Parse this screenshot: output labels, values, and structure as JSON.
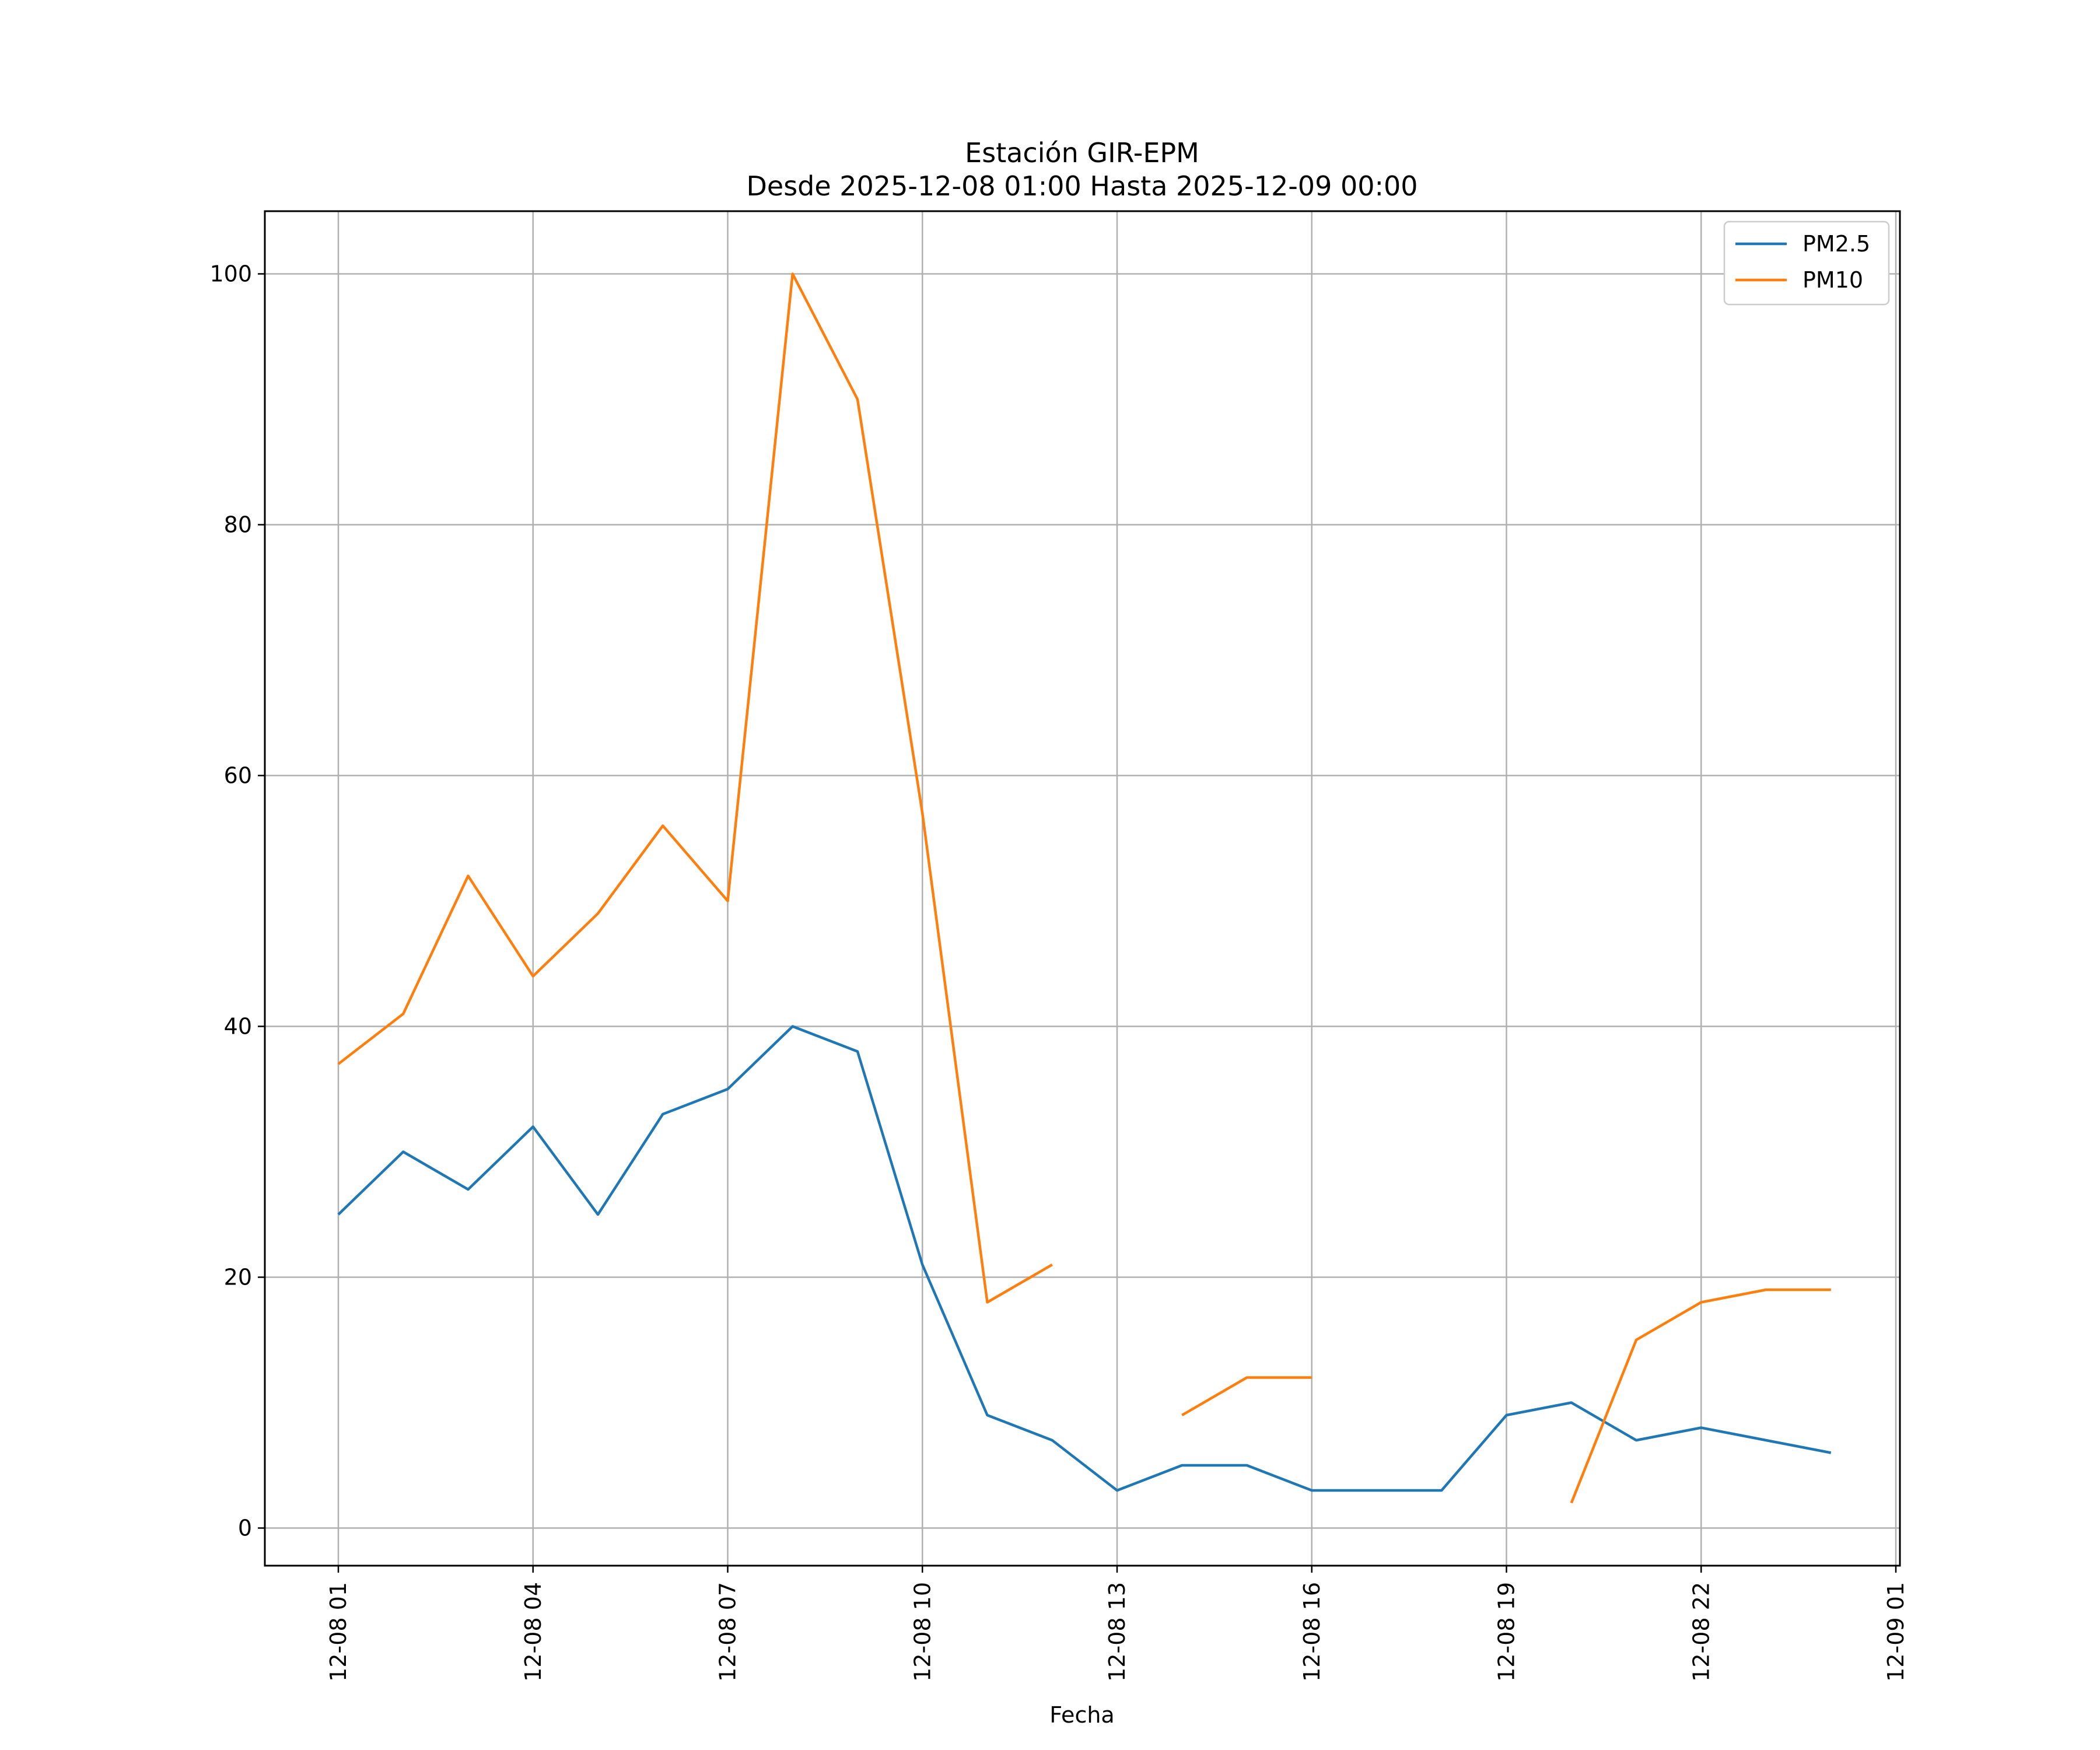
{
  "chart_data": {
    "type": "line",
    "title": "Estación GIR-EPM",
    "subtitle": "Desde 2025-12-08 01:00 Hasta 2025-12-09 00:00",
    "xlabel": "Fecha",
    "ylabel": "",
    "x": [
      "12-08 01",
      "12-08 02",
      "12-08 03",
      "12-08 04",
      "12-08 05",
      "12-08 06",
      "12-08 07",
      "12-08 08",
      "12-08 09",
      "12-08 10",
      "12-08 11",
      "12-08 12",
      "12-08 13",
      "12-08 14",
      "12-08 15",
      "12-08 16",
      "12-08 17",
      "12-08 18",
      "12-08 19",
      "12-08 20",
      "12-08 21",
      "12-08 22",
      "12-08 23",
      "12-09 00"
    ],
    "x_ticks": [
      "12-08 01",
      "12-08 04",
      "12-08 07",
      "12-08 10",
      "12-08 13",
      "12-08 16",
      "12-08 19",
      "12-08 22",
      "12-09 01"
    ],
    "y_ticks": [
      0,
      20,
      40,
      60,
      80,
      100
    ],
    "ylim": [
      -3,
      105
    ],
    "grid": true,
    "legend_position": "top-right",
    "series": [
      {
        "name": "PM2.5",
        "color": "#1f77b4",
        "values": [
          25,
          30,
          27,
          32,
          25,
          33,
          35,
          40,
          38,
          21,
          9,
          7,
          3,
          5,
          5,
          3,
          3,
          3,
          9,
          10,
          7,
          8,
          7,
          6
        ]
      },
      {
        "name": "PM10",
        "color": "#ff7f0e",
        "values": [
          37,
          41,
          52,
          44,
          49,
          56,
          50,
          100,
          90,
          57,
          18,
          21,
          null,
          9,
          12,
          12,
          null,
          null,
          null,
          2,
          15,
          18,
          19,
          19
        ]
      }
    ]
  }
}
